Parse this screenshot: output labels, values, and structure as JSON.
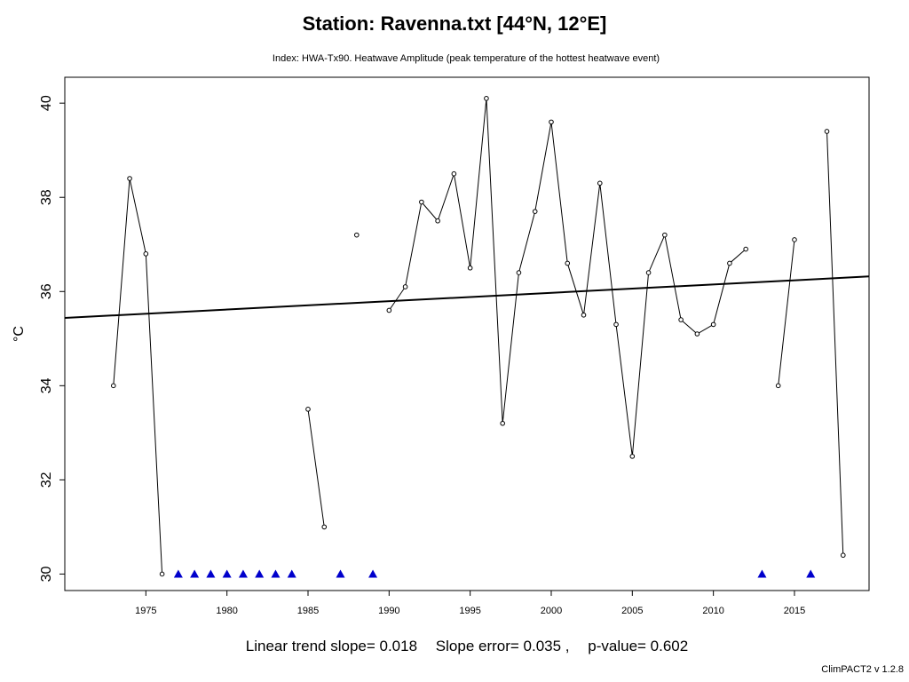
{
  "header": {
    "title": "Station: Ravenna.txt [44°N, 12°E]",
    "subtitle": "Index: HWA-Tx90. Heatwave Amplitude (peak temperature of the hottest heatwave event)"
  },
  "footer": {
    "slope": "Linear trend slope= 0.018",
    "error": "Slope error= 0.035 ,",
    "pvalue": "p-value= 0.602",
    "credit": "ClimPACT2 v 1.2.8"
  },
  "colors": {
    "line": "#000000",
    "missing_marker": "#0000cc",
    "trend": "#000000"
  },
  "chart_data": {
    "type": "line",
    "title": "Station: Ravenna.txt [44°N, 12°E]",
    "subtitle": "Index: HWA-Tx90. Heatwave Amplitude (peak temperature of the hottest heatwave event)",
    "xlabel": "",
    "ylabel": "°C",
    "xlim": [
      1970,
      2019.6
    ],
    "ylim": [
      29.65,
      40.55
    ],
    "xticks": [
      1975,
      1980,
      1985,
      1990,
      1995,
      2000,
      2005,
      2010,
      2015
    ],
    "yticks": [
      30,
      32,
      34,
      36,
      38,
      40
    ],
    "grid": false,
    "series": [
      {
        "x": [
          1973,
          1974,
          1975,
          1976,
          1977,
          1978,
          1979,
          1980,
          1981,
          1982,
          1983,
          1984,
          1985,
          1986,
          1987,
          1988,
          1989,
          1990,
          1991,
          1992,
          1993,
          1994,
          1995,
          1996,
          1997,
          1998,
          1999,
          2000,
          2001,
          2002,
          2003,
          2004,
          2005,
          2006,
          2007,
          2008,
          2009,
          2010,
          2011,
          2012,
          2013,
          2014,
          2015,
          2016,
          2017,
          2018
        ],
        "values": [
          34.0,
          38.4,
          36.8,
          30.0,
          null,
          null,
          null,
          null,
          null,
          null,
          null,
          null,
          33.5,
          31.0,
          null,
          37.2,
          null,
          35.6,
          36.1,
          37.9,
          37.5,
          38.5,
          36.5,
          40.1,
          33.2,
          36.4,
          37.7,
          39.6,
          36.6,
          35.5,
          38.3,
          35.3,
          32.5,
          36.4,
          37.2,
          35.4,
          35.1,
          35.3,
          36.6,
          36.9,
          null,
          34.0,
          37.1,
          null,
          39.4,
          30.4
        ]
      }
    ],
    "missing_years": [
      1977,
      1978,
      1979,
      1980,
      1981,
      1982,
      1983,
      1984,
      1987,
      1989,
      2013,
      2016
    ],
    "missing_marker_value": 30.0,
    "trend": {
      "x": [
        1970,
        2019.6
      ],
      "y": [
        35.44,
        36.32
      ]
    }
  }
}
